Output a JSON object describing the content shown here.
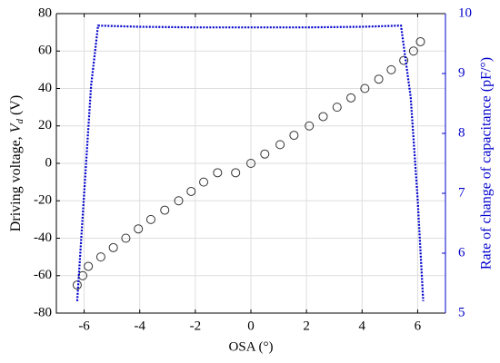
{
  "chart_data": {
    "type": "combo",
    "xlabel": "OSA (°)",
    "ylabel": {
      "text": "Driving voltage, ",
      "symbol": "V",
      "subscript": "d",
      "unit": " (V)"
    },
    "y2label": "Rate of change of capacitance (pF/°)",
    "xlim": [
      -7,
      7
    ],
    "xticks": [
      -6,
      -4,
      -2,
      0,
      2,
      4,
      6
    ],
    "ylim": [
      -80,
      80
    ],
    "yticks": [
      -80,
      -60,
      -40,
      -20,
      0,
      20,
      40,
      60,
      80
    ],
    "y2lim": [
      5,
      10
    ],
    "y2ticks": [
      5,
      6,
      7,
      8,
      9,
      10
    ],
    "grid": true,
    "y2color": "#0000cc",
    "series": [
      {
        "type": "scatter",
        "color": "#333333",
        "x": [
          -6.25,
          -6.05,
          -5.85,
          -5.4,
          -4.95,
          -4.5,
          -4.05,
          -3.6,
          -3.1,
          -2.6,
          -2.15,
          -1.7,
          -1.2,
          -0.55,
          0,
          0.5,
          1.05,
          1.55,
          2.1,
          2.6,
          3.1,
          3.6,
          4.1,
          4.6,
          5.05,
          5.5,
          5.85,
          6.1
        ],
        "values": [
          -65,
          -60,
          -55,
          -50,
          -45,
          -40,
          -35,
          -30,
          -25,
          -20,
          -15,
          -10,
          -5,
          -5,
          0,
          5,
          10,
          15,
          20,
          25,
          30,
          35,
          40,
          45,
          50,
          55,
          60,
          65
        ]
      },
      {
        "type": "line",
        "axis": "y2",
        "color": "#0000cc",
        "x": [
          -6.25,
          -6.0,
          -5.75,
          -5.5,
          -4,
          -2,
          0,
          2,
          4,
          5.4,
          5.75,
          6.0,
          6.2
        ],
        "values": [
          5.2,
          7.0,
          8.8,
          9.8,
          9.78,
          9.77,
          9.77,
          9.77,
          9.78,
          9.8,
          8.6,
          6.9,
          5.2
        ]
      }
    ]
  }
}
